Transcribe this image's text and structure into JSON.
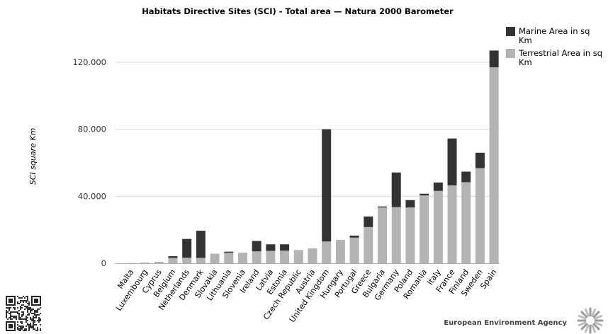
{
  "chart_data": {
    "type": "bar",
    "stacked": true,
    "title": "Habitats Directive Sites (SCI) - Total area — Natura 2000 Barometer",
    "xlabel": "",
    "ylabel": "SCI square Km",
    "ylim": [
      0,
      140000
    ],
    "yticks": [
      0,
      40000,
      80000,
      120000
    ],
    "ytick_labels": [
      "0",
      "40.000",
      "80.000",
      "120.000"
    ],
    "grid": true,
    "legend_position": "top-right",
    "categories": [
      "Malta",
      "Luxembourg",
      "Cyprus",
      "Belgium",
      "Netherlands",
      "Denmark",
      "Slovakia",
      "Lithuania",
      "Slovenia",
      "Ireland",
      "Latvia",
      "Estonia",
      "Czech Republic",
      "Austria",
      "United Kingdom",
      "Hungary",
      "Portugal",
      "Greece",
      "Bulgaria",
      "Germany",
      "Poland",
      "Romania",
      "Italy",
      "France",
      "Finland",
      "Sweden",
      "Spain"
    ],
    "series": [
      {
        "name": "Terrestrial Area in sq Km",
        "color": "#b3b3b3",
        "values": [
          40,
          400,
          750,
          3200,
          3300,
          3200,
          5700,
          6300,
          6300,
          7100,
          7400,
          7500,
          7900,
          8900,
          13000,
          13900,
          15300,
          21600,
          33300,
          33500,
          33300,
          40500,
          43200,
          46500,
          48400,
          56800,
          117000
        ]
      },
      {
        "name": "Marine Area in sq Km",
        "color": "#333333",
        "values": [
          30,
          0,
          50,
          1000,
          11200,
          16200,
          0,
          600,
          0,
          6200,
          3900,
          3800,
          0,
          0,
          67000,
          0,
          1200,
          6300,
          600,
          20700,
          4400,
          1000,
          5000,
          28000,
          6300,
          9200,
          10000
        ]
      }
    ]
  },
  "footer": {
    "agency": "European Environment Agency"
  },
  "colors": {
    "marine": "#333333",
    "terrestrial": "#b3b3b3",
    "axis": "#b0b0b0",
    "grid": "#d8d8d8"
  }
}
